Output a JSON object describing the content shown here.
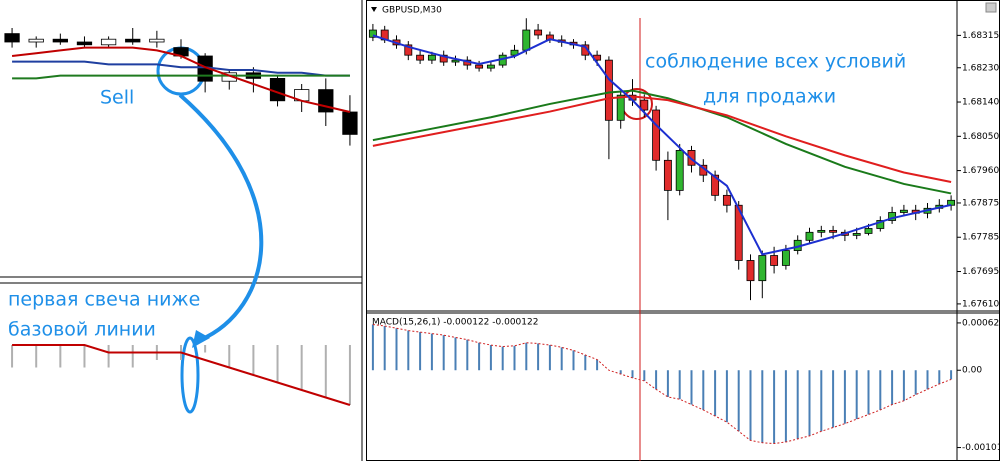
{
  "chart_data": [
    {
      "type": "candlestick",
      "up_color": "#ffffff",
      "down_color": "#000000",
      "wick_color": "#000000",
      "ylim": [
        0,
        100
      ],
      "open": [
        88,
        85,
        86,
        85,
        84,
        86,
        85,
        83,
        80,
        71,
        74,
        72,
        64,
        68,
        60
      ],
      "high": [
        90,
        87,
        88,
        87,
        87,
        90,
        89,
        86,
        81,
        75,
        76,
        73,
        70,
        72,
        66
      ],
      "low": [
        83,
        83,
        84,
        83,
        83,
        84,
        83,
        79,
        67,
        68,
        67,
        62,
        60,
        55,
        48
      ],
      "close": [
        85,
        86,
        85,
        84,
        86,
        85,
        86,
        80,
        71,
        74,
        72,
        64,
        68,
        60,
        52
      ],
      "series": [
        {
          "color": "#1f3fa0",
          "values": [
            78,
            78,
            78,
            78,
            77,
            77,
            77,
            76,
            76,
            75,
            75,
            74,
            74,
            73,
            73
          ]
        },
        {
          "color": "#1f7a1f",
          "values": [
            72,
            72,
            73,
            73,
            73,
            73,
            73,
            73,
            73,
            73,
            73,
            73,
            73,
            73,
            73
          ]
        },
        {
          "color": "#c00000",
          "values": [
            80,
            81,
            82,
            83,
            83,
            83,
            82,
            80,
            76,
            73,
            70,
            67,
            64,
            62,
            60
          ]
        }
      ],
      "annotations": [
        "Sell"
      ]
    },
    {
      "type": "bar",
      "color": "#b0b0b0",
      "ylim": [
        -10,
        2
      ],
      "values": [
        -3,
        -3,
        -3,
        -3,
        -3,
        -3,
        -2,
        -2,
        -1,
        -3,
        -4,
        -5,
        -6,
        -7,
        -8
      ],
      "series": [
        {
          "color": "#c00000",
          "values": [
            0,
            0,
            0,
            0,
            -1,
            -1,
            -1,
            -1,
            -2,
            -3,
            -4,
            -5,
            -6,
            -7,
            -8
          ]
        }
      ],
      "annotations": [
        "первая свеча ниже",
        "базовой линии"
      ]
    },
    {
      "type": "candlestick",
      "title": "GBPUSD,M30",
      "up_color": "#2fb52f",
      "down_color": "#e02b2b",
      "wick_color": "#000000",
      "ylim": [
        1.67594,
        1.684
      ],
      "yticks": [
        1.68315,
        {
          "value": 1.6823,
          "label": "1.68230"
        },
        {
          "value": 1.6814,
          "label": "1.68140"
        },
        {
          "value": 1.6805,
          "label": "1.68050"
        },
        {
          "value": 1.6796,
          "label": "1.67960"
        },
        1.67875,
        1.67785,
        1.67695,
        {
          "value": 1.6761,
          "label": "1.67610"
        }
      ],
      "open": [
        1.6831,
        1.68329,
        1.68303,
        1.6829,
        1.68263,
        1.6825,
        1.68263,
        1.68245,
        1.6825,
        1.68237,
        1.68229,
        1.68237,
        1.68263,
        1.68276,
        1.68329,
        1.68316,
        1.68303,
        1.68297,
        1.6829,
        1.68263,
        1.6825,
        1.68092,
        1.68158,
        1.68145,
        1.68119,
        1.67987,
        1.67908,
        1.68013,
        1.67974,
        1.67948,
        1.67895,
        1.67869,
        1.67724,
        1.67671,
        1.67737,
        1.67711,
        1.6775,
        1.67777,
        1.67798,
        1.67803,
        1.67798,
        1.6779,
        1.67795,
        1.67808,
        1.67829,
        1.6785,
        1.67856,
        1.67848,
        1.67861,
        1.67869
      ],
      "high": [
        1.68345,
        1.6834,
        1.68315,
        1.683,
        1.68275,
        1.68272,
        1.68275,
        1.68262,
        1.6826,
        1.68248,
        1.68245,
        1.6827,
        1.6829,
        1.6836,
        1.68345,
        1.68325,
        1.68315,
        1.68305,
        1.683,
        1.68275,
        1.6826,
        1.68175,
        1.682,
        1.6816,
        1.6813,
        1.6801,
        1.6803,
        1.68025,
        1.6799,
        1.6796,
        1.6791,
        1.6788,
        1.6774,
        1.6775,
        1.6776,
        1.67765,
        1.6779,
        1.6781,
        1.67815,
        1.67815,
        1.67805,
        1.6781,
        1.6782,
        1.6784,
        1.67865,
        1.6787,
        1.6787,
        1.67875,
        1.67885,
        1.67895
      ],
      "low": [
        1.683,
        1.68295,
        1.6828,
        1.6825,
        1.6824,
        1.6824,
        1.68235,
        1.68235,
        1.68225,
        1.6822,
        1.6822,
        1.6823,
        1.68255,
        1.68265,
        1.68305,
        1.68295,
        1.68285,
        1.6828,
        1.6825,
        1.68235,
        1.6799,
        1.6807,
        1.6813,
        1.681,
        1.6796,
        1.6783,
        1.67895,
        1.67955,
        1.6793,
        1.6788,
        1.6785,
        1.677,
        1.6762,
        1.67625,
        1.6769,
        1.677,
        1.6774,
        1.6777,
        1.67785,
        1.6778,
        1.67775,
        1.6778,
        1.6779,
        1.678,
        1.6782,
        1.6784,
        1.6783,
        1.67835,
        1.6785,
        1.67855
      ],
      "close": [
        1.68329,
        1.68303,
        1.6829,
        1.68263,
        1.6825,
        1.68263,
        1.68245,
        1.6825,
        1.68237,
        1.68229,
        1.68237,
        1.68263,
        1.68276,
        1.68329,
        1.68316,
        1.68303,
        1.68297,
        1.6829,
        1.68263,
        1.6825,
        1.68092,
        1.68158,
        1.68145,
        1.68119,
        1.67987,
        1.67908,
        1.68013,
        1.67974,
        1.67948,
        1.67895,
        1.67869,
        1.67724,
        1.67671,
        1.67737,
        1.67711,
        1.6775,
        1.67777,
        1.67798,
        1.67803,
        1.67798,
        1.6779,
        1.67795,
        1.67808,
        1.67829,
        1.6785,
        1.67856,
        1.67848,
        1.67861,
        1.67869,
        1.67882
      ],
      "series": [
        {
          "color": "#1a7a1a",
          "x": [
            0,
            5,
            10,
            15,
            20,
            22,
            25,
            30,
            35,
            40,
            45,
            49
          ],
          "values": [
            1.6804,
            1.6807,
            1.681,
            1.68135,
            1.68165,
            1.6817,
            1.6815,
            1.681,
            1.6803,
            1.6797,
            1.67925,
            1.679
          ]
        },
        {
          "color": "#e01e1e",
          "x": [
            0,
            5,
            10,
            15,
            20,
            22,
            25,
            30,
            35,
            40,
            45,
            49
          ],
          "values": [
            1.68025,
            1.68055,
            1.68085,
            1.68115,
            1.6815,
            1.68155,
            1.68145,
            1.68105,
            1.6805,
            1.68,
            1.67955,
            1.6793
          ]
        },
        {
          "color": "#1c2fd0",
          "x": [
            0,
            3,
            6,
            9,
            12,
            15,
            18,
            20,
            22,
            24,
            27,
            30,
            33,
            36,
            40,
            44,
            49
          ],
          "values": [
            1.68315,
            1.68285,
            1.6826,
            1.6824,
            1.6826,
            1.68305,
            1.68285,
            1.682,
            1.68145,
            1.6808,
            1.6799,
            1.6792,
            1.6774,
            1.6776,
            1.67795,
            1.67835,
            1.6787
          ]
        }
      ],
      "annotations": [
        "соблюдение всех условий",
        "для продажи"
      ]
    },
    {
      "type": "bar",
      "title": "MACD(15,26,1) -0.000122 -0.000122",
      "color": "#4a7fb5",
      "signal_color": "#d02020",
      "ylim": [
        -0.00115,
        0.00075
      ],
      "yticks": [
        0.00062,
        {
          "value": 0,
          "label": "0.00"
        },
        -0.001013
      ],
      "values": [
        0.0006,
        0.00058,
        0.00055,
        0.00052,
        0.0005,
        0.00048,
        0.00046,
        0.00043,
        0.0004,
        0.00036,
        0.00033,
        0.00031,
        0.00032,
        0.00036,
        0.00035,
        0.00033,
        0.0003,
        0.00026,
        0.0002,
        0.00014,
        0,
        -5e-05,
        -0.0001,
        -0.00014,
        -0.00025,
        -0.00035,
        -0.00038,
        -0.00045,
        -0.00052,
        -0.0006,
        -0.00068,
        -0.0008,
        -0.00092,
        -0.00095,
        -0.00096,
        -0.00094,
        -0.0009,
        -0.00086,
        -0.0008,
        -0.00075,
        -0.0007,
        -0.00064,
        -0.00058,
        -0.00052,
        -0.00045,
        -0.0004,
        -0.00032,
        -0.00025,
        -0.00018,
        -0.00012
      ]
    }
  ]
}
